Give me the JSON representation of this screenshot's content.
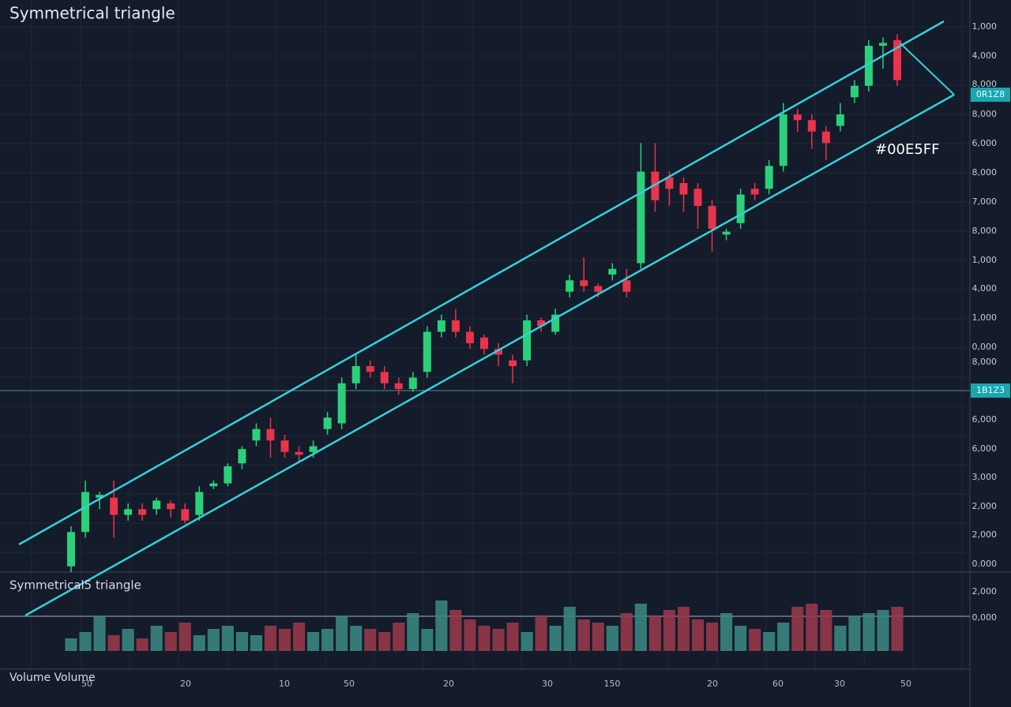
{
  "chart_data": [
    {
      "type": "candlestick",
      "title": "Symmetrical triangle",
      "annotation": "#00E5FF",
      "open": [
        1,
        7,
        13,
        13,
        10,
        11,
        11,
        12,
        11,
        10,
        15,
        15.5,
        19,
        23,
        25,
        23,
        21,
        21,
        25,
        26,
        33,
        36,
        35,
        33,
        32,
        35,
        42,
        44,
        42,
        41,
        39,
        37,
        37,
        44,
        42,
        49,
        51,
        50,
        52,
        51,
        54,
        70,
        69,
        68,
        67,
        64,
        59,
        61,
        67,
        67,
        71,
        80,
        79,
        77,
        78,
        83,
        85,
        92,
        93
      ],
      "close": [
        7,
        14,
        13.5,
        10,
        11,
        10,
        12.5,
        11,
        9,
        14,
        15.5,
        18.5,
        21.5,
        25,
        23,
        21,
        20.5,
        22,
        27,
        33,
        36,
        35,
        33,
        32,
        34,
        42,
        44,
        42,
        40,
        39,
        38,
        36,
        44,
        43,
        45,
        51,
        50,
        49,
        53,
        49,
        70,
        65,
        67,
        66,
        64,
        60,
        59.5,
        66,
        66,
        71,
        80,
        79,
        77,
        75,
        80,
        85,
        92,
        92.5,
        86
      ],
      "high": [
        8,
        16,
        14,
        16,
        12,
        12,
        13,
        12.5,
        12,
        15,
        16,
        19,
        22,
        26,
        27,
        24,
        22,
        23,
        28,
        34,
        38,
        37,
        36,
        34,
        35,
        43,
        45,
        46,
        43,
        41.5,
        40,
        38,
        45,
        44.5,
        46,
        52,
        55,
        50.5,
        54,
        53,
        75,
        75,
        70,
        69,
        68,
        65,
        60,
        67,
        68,
        72,
        82,
        81,
        80,
        78,
        82,
        86,
        93,
        93.5,
        94
      ],
      "low": [
        0,
        6,
        11,
        6,
        9,
        9,
        10,
        9.5,
        8.5,
        9,
        14.5,
        15,
        18,
        22,
        20,
        20,
        19,
        20,
        24,
        25,
        32,
        34,
        32,
        31,
        31.5,
        34,
        41,
        41,
        39,
        38,
        36,
        33,
        36,
        42,
        41.5,
        48,
        49,
        48,
        51,
        48,
        53,
        63,
        64,
        63,
        60,
        56,
        58,
        60,
        65,
        66,
        70,
        77,
        74,
        72,
        77,
        82,
        84,
        88,
        85
      ],
      "up_color": "#2bd07a",
      "down_color": "#e8344c",
      "line_color": "#35d0da",
      "ylim": [
        0,
        100
      ],
      "price_axis_labels": [
        "1,000",
        "4,000",
        "8,000",
        "8,000",
        "6,000",
        "8,000",
        "7,000",
        "8,000",
        "1,000",
        "4,000",
        "1,000",
        "0,000",
        "8,000",
        "6,000",
        "6,000",
        "3,000",
        "2,000",
        "2,000",
        "0.000"
      ],
      "price_tags": [
        "0R1Z8",
        "1B1Z3"
      ],
      "x_labels": [
        "50",
        "20",
        "10",
        "50",
        "20",
        "30",
        "150",
        "20",
        "60",
        "30",
        "50"
      ]
    },
    {
      "type": "bar",
      "title": "Symmetrical5 triangle",
      "footer": "Volume Volume",
      "values": [
        20,
        30,
        55,
        25,
        35,
        20,
        40,
        30,
        45,
        25,
        35,
        40,
        30,
        25,
        40,
        35,
        45,
        30,
        35,
        55,
        40,
        35,
        30,
        45,
        60,
        35,
        80,
        65,
        50,
        40,
        35,
        45,
        30,
        55,
        40,
        70,
        50,
        45,
        40,
        60,
        75,
        55,
        65,
        70,
        50,
        45,
        60,
        40,
        35,
        30,
        45,
        70,
        75,
        65,
        40,
        55,
        60,
        65,
        70
      ],
      "up_color": "#3a8580",
      "down_color": "#93394a",
      "ylim": [
        0,
        100
      ],
      "axis_labels": [
        "2,000",
        "0,000"
      ]
    }
  ]
}
